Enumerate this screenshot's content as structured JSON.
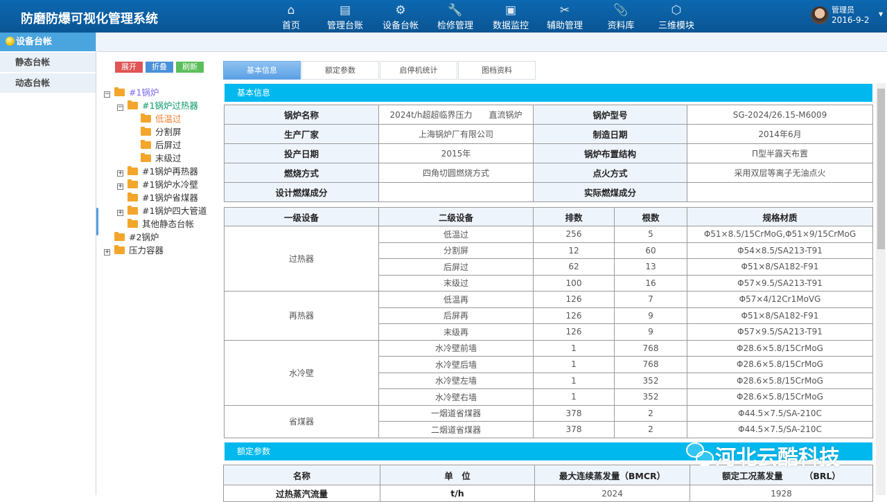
{
  "header": {
    "title": "防磨防爆可视化管理系统",
    "nav": [
      {
        "label": "首页",
        "icon": "home-icon",
        "glyph": "⌂"
      },
      {
        "label": "管理台账",
        "icon": "ledger-icon",
        "glyph": "▤"
      },
      {
        "label": "设备台帐",
        "icon": "gear-icon",
        "glyph": "⚙"
      },
      {
        "label": "检修管理",
        "icon": "wrench-icon",
        "glyph": "🔧"
      },
      {
        "label": "数据监控",
        "icon": "monitor-icon",
        "glyph": "▣"
      },
      {
        "label": "辅助管理",
        "icon": "tools-icon",
        "glyph": "✂"
      },
      {
        "label": "资料库",
        "icon": "paperclip-icon",
        "glyph": "📎"
      },
      {
        "label": "三维模块",
        "icon": "cube-icon",
        "glyph": "⬡"
      }
    ],
    "user": {
      "name": "管理员",
      "date": "2016-9-2"
    }
  },
  "sidebar": {
    "title": "设备台帐",
    "items": [
      "静态台帐",
      "动态台帐"
    ]
  },
  "toolbar": {
    "expand": "展开",
    "collapse": "折叠",
    "refresh": "刷新",
    "colors": {
      "expand": "#e05555",
      "collapse": "#4a90d9",
      "refresh": "#5cbf5c"
    }
  },
  "tree": [
    {
      "label": "#1锅炉",
      "level": 0,
      "toggle": "−",
      "color": "#7b68ee"
    },
    {
      "label": "#1锅炉过热器",
      "level": 1,
      "toggle": "−",
      "color": "#0a9a6a"
    },
    {
      "label": "低温过",
      "level": 2,
      "toggle": "",
      "color": "#f08030"
    },
    {
      "label": "分割屏",
      "level": 2,
      "toggle": "",
      "color": "#333"
    },
    {
      "label": "后屏过",
      "level": 2,
      "toggle": "",
      "color": "#333"
    },
    {
      "label": "末级过",
      "level": 2,
      "toggle": "",
      "color": "#333"
    },
    {
      "label": "#1锅炉再热器",
      "level": 1,
      "toggle": "+",
      "color": "#333"
    },
    {
      "label": "#1锅炉水冷壁",
      "level": 1,
      "toggle": "+",
      "color": "#333"
    },
    {
      "label": "#1锅炉省煤器",
      "level": 1,
      "toggle": "",
      "color": "#333"
    },
    {
      "label": "#1锅炉四大管道",
      "level": 1,
      "toggle": "+",
      "color": "#333"
    },
    {
      "label": "其他静态台帐",
      "level": 1,
      "toggle": "",
      "color": "#333"
    },
    {
      "label": "#2锅炉",
      "level": 0,
      "toggle": "",
      "color": "#333"
    },
    {
      "label": "压力容器",
      "level": 0,
      "toggle": "+",
      "color": "#333"
    }
  ],
  "tabs": [
    {
      "label": "基本信息",
      "active": true
    },
    {
      "label": "额定参数"
    },
    {
      "label": "启停机统计"
    },
    {
      "label": "图档资料"
    }
  ],
  "basic": {
    "title": "基本信息",
    "rows": [
      [
        "锅炉名称",
        "2024t/h超超临界压力　　直流锅炉",
        "锅炉型号",
        "SG-2024/26.15-M6009"
      ],
      [
        "生产厂家",
        "上海锅炉厂有限公司",
        "制造日期",
        "2014年6月"
      ],
      [
        "投产日期",
        "2015年",
        "锅炉布置结构",
        "П型半露天布置"
      ],
      [
        "燃烧方式",
        "四角切圆燃烧方式",
        "点火方式",
        "采用双层等离子无油点火"
      ],
      [
        "设计燃煤成分",
        "",
        "实际燃煤成分",
        ""
      ]
    ]
  },
  "equipment": {
    "headers": [
      "一级设备",
      "二级设备",
      "排数",
      "根数",
      "规格材质"
    ],
    "groups": [
      {
        "name": "过热器",
        "rows": [
          [
            "低温过",
            "256",
            "5",
            "Φ51×8.5/15CrMoG,Φ51×9/15CrMoG"
          ],
          [
            "分割屏",
            "12",
            "60",
            "Φ54×8.5/SA213-T91"
          ],
          [
            "后屏过",
            "62",
            "13",
            "Φ51×8/SA182-F91"
          ],
          [
            "末级过",
            "100",
            "16",
            "Φ57×9.5/SA213-T91"
          ]
        ]
      },
      {
        "name": "再热器",
        "rows": [
          [
            "低温再",
            "126",
            "7",
            "Φ57×4/12Cr1MoVG"
          ],
          [
            "后屏再",
            "126",
            "9",
            "Φ51×8/SA182-F91"
          ],
          [
            "末级再",
            "126",
            "9",
            "Φ57×9.5/SA213-T91"
          ]
        ]
      },
      {
        "name": "水冷壁",
        "rows": [
          [
            "水冷壁前墙",
            "1",
            "768",
            "Φ28.6×5.8/15CrMoG"
          ],
          [
            "水冷壁后墙",
            "1",
            "768",
            "Φ28.6×5.8/15CrMoG"
          ],
          [
            "水冷壁左墙",
            "1",
            "352",
            "Φ28.6×5.8/15CrMoG"
          ],
          [
            "水冷壁右墙",
            "1",
            "352",
            "Φ28.6×5.8/15CrMoG"
          ]
        ]
      },
      {
        "name": "省煤器",
        "rows": [
          [
            "一烟道省煤器",
            "378",
            "2",
            "Φ44.5×7.5/SA-210C"
          ],
          [
            "二烟道省煤器",
            "378",
            "2",
            "Φ44.5×7.5/SA-210C"
          ]
        ]
      }
    ]
  },
  "rated": {
    "title": "额定参数",
    "headers": [
      "名称",
      "单　位",
      "最大连续蒸发量（BMCR）",
      "额定工况蒸发量　　　（BRL）"
    ],
    "rows": [
      [
        "过热蒸汽流量",
        "t/h",
        "2024",
        "1928"
      ]
    ]
  },
  "watermark": "河北云酷科技"
}
